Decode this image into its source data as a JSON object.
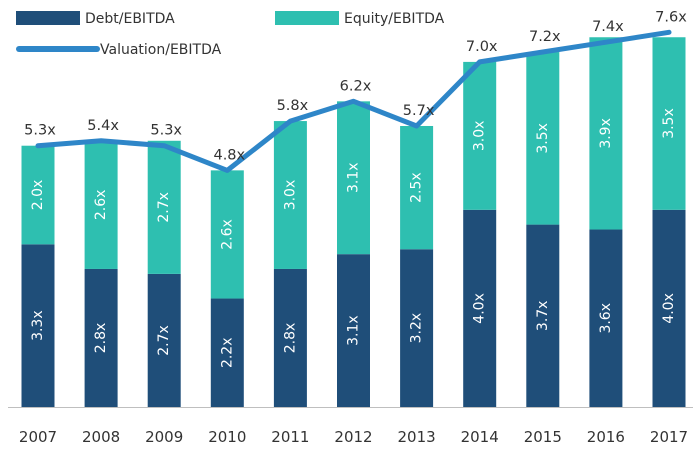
{
  "chart_data": {
    "type": "bar",
    "stacked": true,
    "title": "",
    "xlabel": "",
    "ylabel": "",
    "ylim": [
      0,
      8.2
    ],
    "grid": false,
    "legend_position": "top",
    "categories": [
      "2007",
      "2008",
      "2009",
      "2010",
      "2011",
      "2012",
      "2013",
      "2014",
      "2015",
      "2016",
      "2017"
    ],
    "series": [
      {
        "name": "Debt/EBITDA",
        "kind": "bar",
        "color": "#1f4e79",
        "values": [
          3.3,
          2.8,
          2.7,
          2.2,
          2.8,
          3.1,
          3.2,
          4.0,
          3.7,
          3.6,
          4.0
        ],
        "labels": [
          "3.3x",
          "2.8x",
          "2.7x",
          "2.2x",
          "2.8x",
          "3.1x",
          "3.2x",
          "4.0x",
          "3.7x",
          "3.6x",
          "4.0x"
        ]
      },
      {
        "name": "Equity/EBITDA",
        "kind": "bar",
        "color": "#2ebfb0",
        "values": [
          2.0,
          2.6,
          2.7,
          2.6,
          3.0,
          3.1,
          2.5,
          3.0,
          3.5,
          3.9,
          3.5
        ],
        "labels": [
          "2.0x",
          "2.6x",
          "2.7x",
          "2.6x",
          "3.0x",
          "3.1x",
          "2.5x",
          "3.0x",
          "3.5x",
          "3.9x",
          "3.5x"
        ]
      },
      {
        "name": "Valuation/EBITDA",
        "kind": "line",
        "color": "#2e86c8",
        "values": [
          5.3,
          5.4,
          5.3,
          4.8,
          5.8,
          6.2,
          5.7,
          7.0,
          7.2,
          7.4,
          7.6
        ],
        "labels": [
          "5.3x",
          "5.4x",
          "5.3x",
          "4.8x",
          "5.8x",
          "6.2x",
          "5.7x",
          "7.0x",
          "7.2x",
          "7.4x",
          "7.6x"
        ]
      }
    ]
  }
}
